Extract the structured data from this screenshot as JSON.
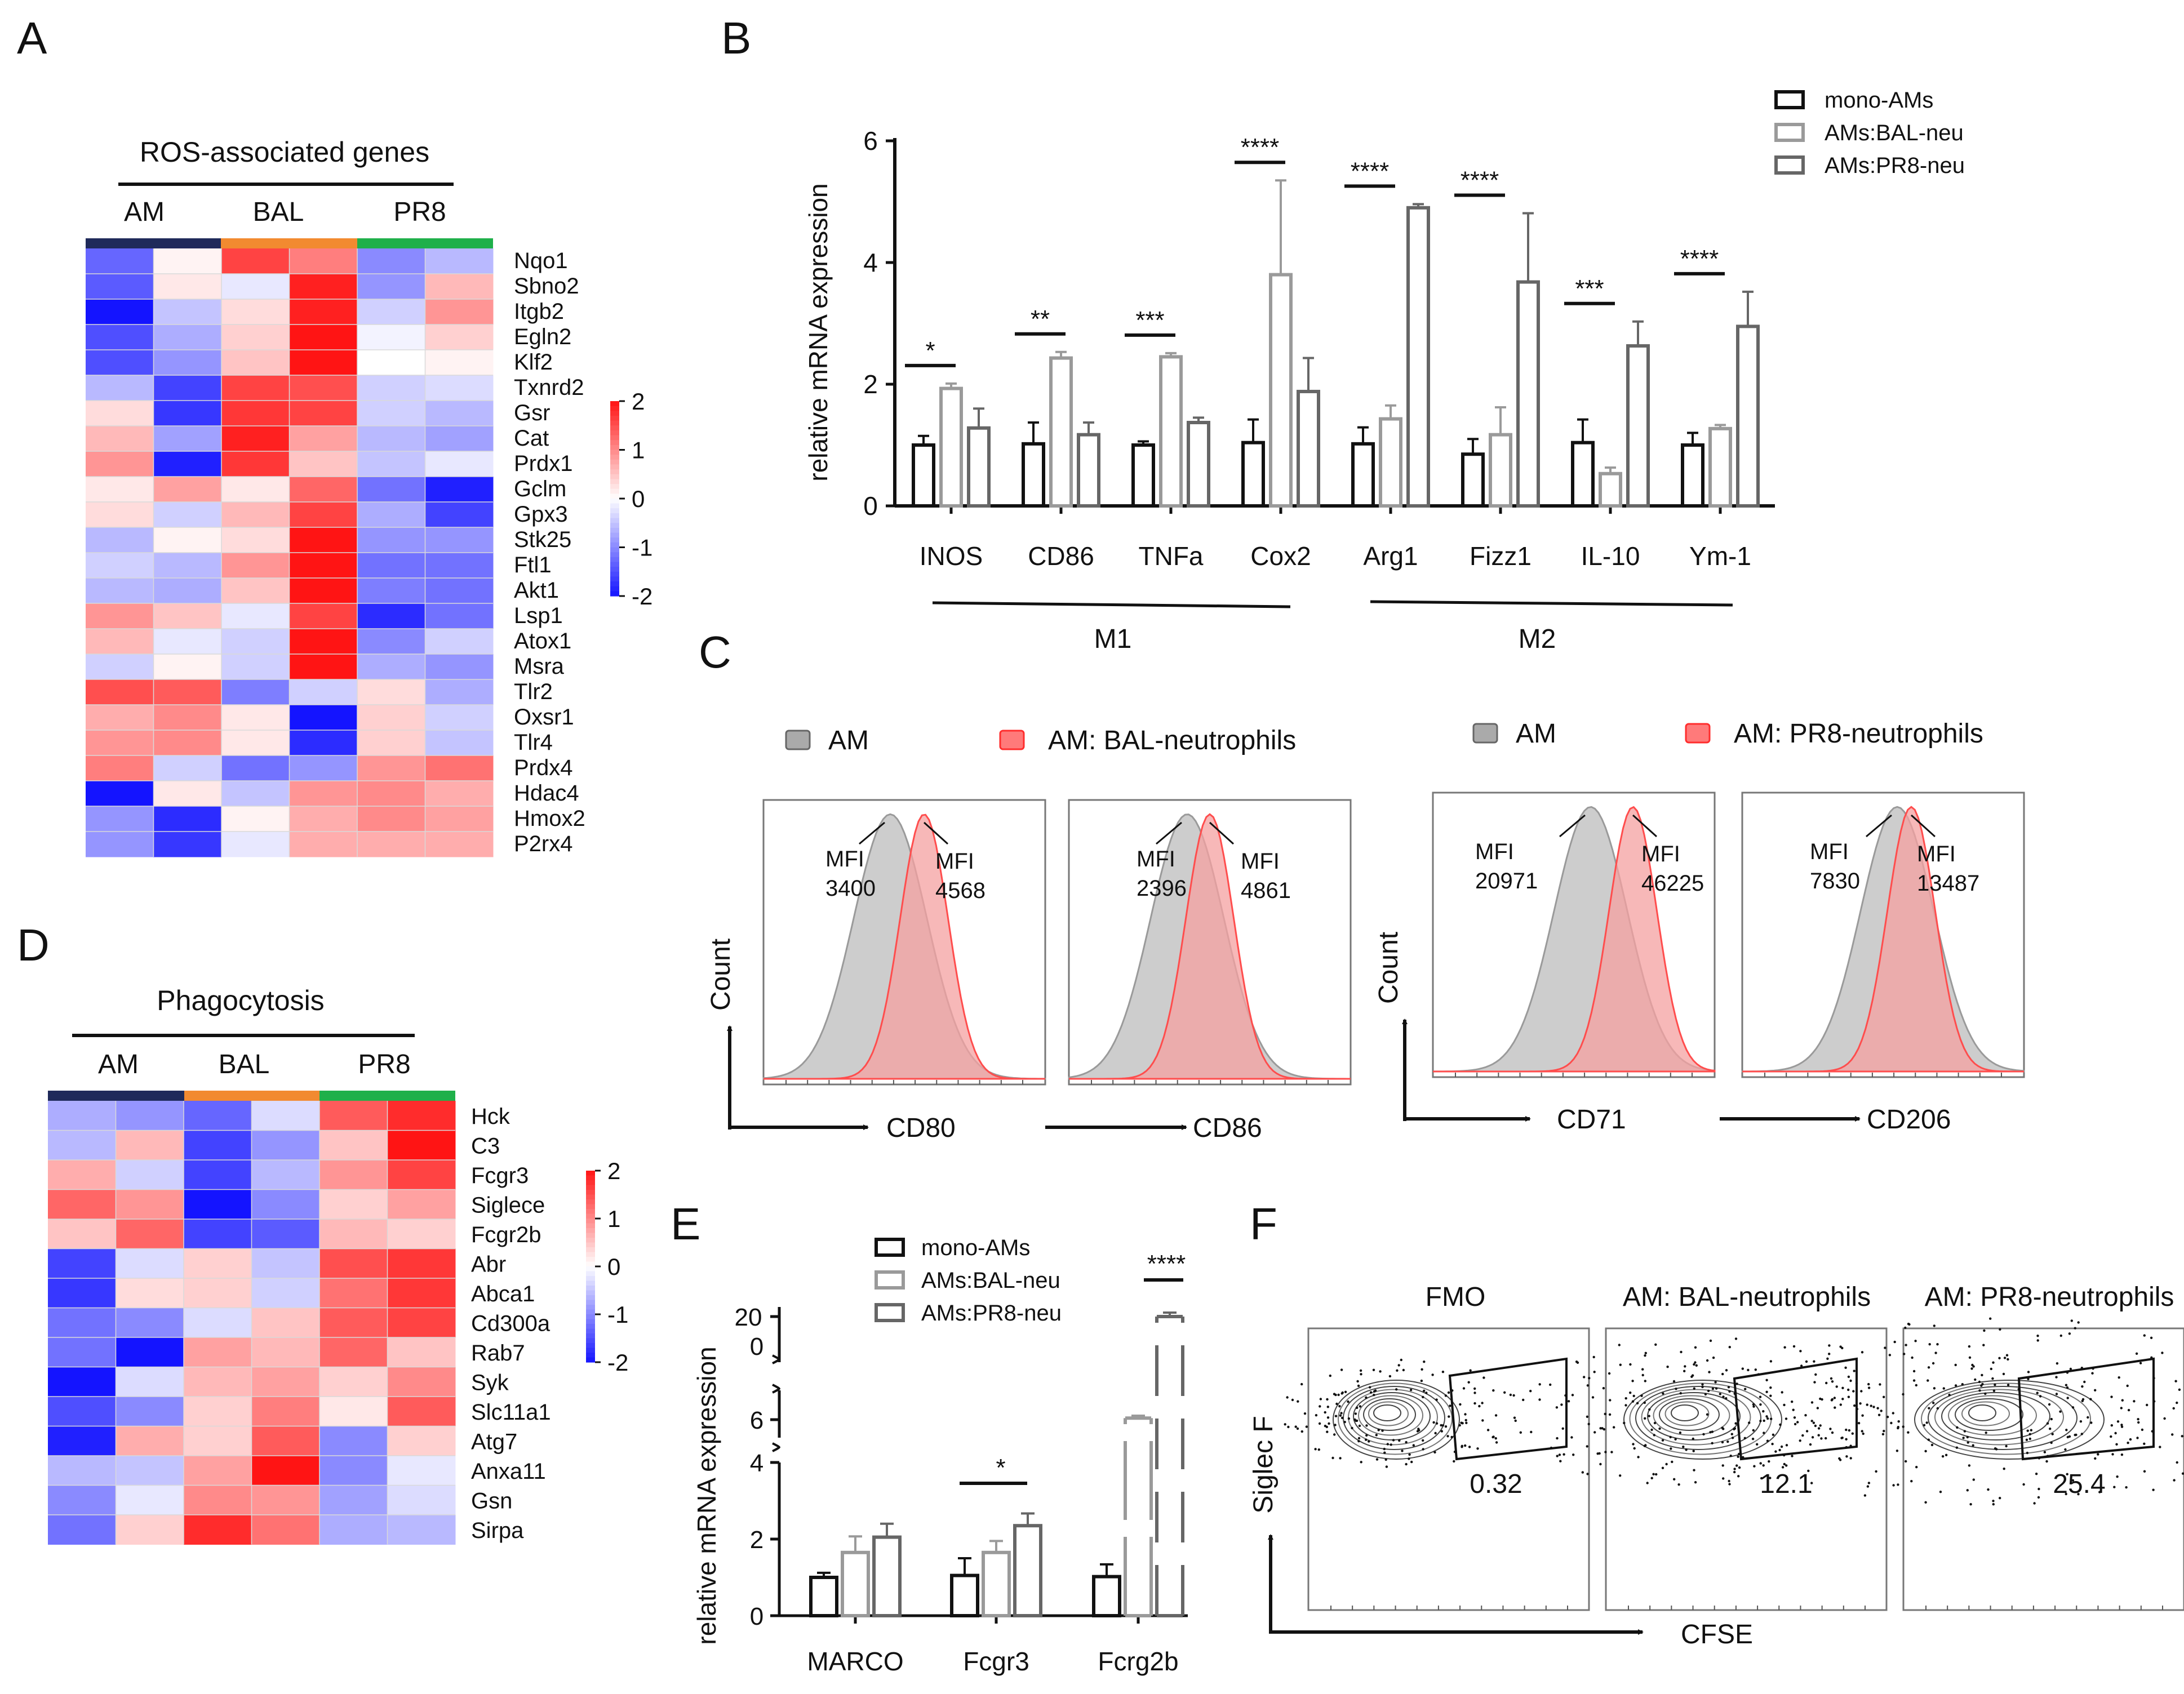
{
  "colors": {
    "black": "#111111",
    "lightgray": "#9a9a9a",
    "darkgray": "#666666",
    "red": "#ff2d2d",
    "blue": "#1a1aff",
    "navy": "#1f2a5a",
    "orange": "#f28a30",
    "green": "#1fb04a",
    "hist_gray": "#c8c8c8",
    "hist_red": "#f4a0a0"
  },
  "panels": {
    "A": {
      "letter": "A",
      "title": "ROS-associated genes",
      "groups": [
        "AM",
        "BAL",
        "PR8"
      ],
      "group_colors": [
        "#1f2a5a",
        "#f28a30",
        "#1fb04a"
      ],
      "genes": [
        "Nqo1",
        "Sbno2",
        "Itgb2",
        "Egln2",
        "Klf2",
        "Txnrd2",
        "Gsr",
        "Cat",
        "Prdx1",
        "Gclm",
        "Gpx3",
        "Stk25",
        "Ftl1",
        "Akt1",
        "Lsp1",
        "Atox1",
        "Msra",
        "Tlr2",
        "Oxsr1",
        "Tlr4",
        "Prdx4",
        "Hdac4",
        "Hmox2",
        "P2rx4"
      ],
      "matrix": [
        [
          -1.3,
          0.1,
          1.6,
          1.1,
          -1.0,
          -0.6
        ],
        [
          -1.4,
          0.2,
          -0.2,
          1.9,
          -0.9,
          0.6
        ],
        [
          -2.0,
          -0.5,
          0.3,
          1.9,
          -0.4,
          0.9
        ],
        [
          -1.5,
          -0.7,
          0.4,
          2.0,
          -0.1,
          0.4
        ],
        [
          -1.5,
          -0.9,
          0.5,
          2.0,
          0.0,
          0.1
        ],
        [
          -0.6,
          -1.6,
          1.6,
          1.5,
          -0.4,
          -0.3
        ],
        [
          0.3,
          -1.7,
          1.7,
          1.6,
          -0.4,
          -0.6
        ],
        [
          0.6,
          -0.8,
          1.9,
          0.8,
          -0.6,
          -0.8
        ],
        [
          0.9,
          -1.9,
          1.7,
          0.5,
          -0.5,
          -0.2
        ],
        [
          0.2,
          0.8,
          0.2,
          1.3,
          -1.2,
          -1.9
        ],
        [
          0.3,
          -0.4,
          0.6,
          1.6,
          -0.7,
          -1.6
        ],
        [
          -0.6,
          0.1,
          0.3,
          2.2,
          -0.9,
          -0.9
        ],
        [
          -0.4,
          -0.6,
          0.9,
          2.2,
          -1.2,
          -1.2
        ],
        [
          -0.6,
          -0.7,
          0.5,
          2.1,
          -1.1,
          -1.2
        ],
        [
          0.9,
          0.5,
          -0.2,
          1.6,
          -1.8,
          -1.2
        ],
        [
          0.6,
          -0.2,
          -0.4,
          2.1,
          -1.0,
          -0.4
        ],
        [
          -0.4,
          0.1,
          -0.4,
          2.0,
          -0.7,
          -0.9
        ],
        [
          1.5,
          1.4,
          -1.1,
          -0.4,
          0.3,
          -0.7
        ],
        [
          0.7,
          1.0,
          0.2,
          -2.1,
          0.4,
          -0.4
        ],
        [
          0.9,
          1.0,
          0.2,
          -1.8,
          0.4,
          -0.5
        ],
        [
          1.1,
          -0.4,
          -1.2,
          -0.9,
          0.9,
          1.2
        ],
        [
          -2.0,
          0.2,
          -0.5,
          0.9,
          1.0,
          0.7
        ],
        [
          -0.9,
          -1.8,
          0.1,
          0.7,
          1.0,
          0.8
        ],
        [
          -0.9,
          -1.7,
          -0.2,
          0.7,
          0.7,
          0.7
        ]
      ],
      "scale_ticks": [
        "2",
        "1",
        "0",
        "-1",
        "-2"
      ]
    },
    "B": {
      "letter": "B",
      "ylabel": "relative mRNA expression",
      "yticks": [
        "0",
        "2",
        "4",
        "6"
      ],
      "ymax": 6,
      "legend": [
        "mono-AMs",
        "AMs:BAL-neu",
        "AMs:PR8-neu"
      ],
      "categories": [
        "INOS",
        "CD86",
        "TNFa",
        "Cox2",
        "Arg1",
        "Fizz1",
        "IL-10",
        "Ym-1"
      ],
      "group_labels": [
        "M1",
        "M2"
      ],
      "sig": [
        "*",
        "**",
        "***",
        "****",
        "****",
        "****",
        "***",
        "****"
      ]
    },
    "C": {
      "letter": "C",
      "legend_left": [
        "AM",
        "AM: BAL-neutrophils"
      ],
      "legend_right": [
        "AM",
        "AM: PR8-neutrophils"
      ],
      "ylabel": "Count",
      "mfi_word": "MFI",
      "plots": [
        {
          "marker": "CD80",
          "gray_mfi": "3400",
          "red_mfi": "4568"
        },
        {
          "marker": "CD86",
          "gray_mfi": "2396",
          "red_mfi": "4861"
        },
        {
          "marker": "CD71",
          "gray_mfi": "20971",
          "red_mfi": "46225"
        },
        {
          "marker": "CD206",
          "gray_mfi": "7830",
          "red_mfi": "13487"
        }
      ]
    },
    "D": {
      "letter": "D",
      "title": "Phagocytosis",
      "groups": [
        "AM",
        "BAL",
        "PR8"
      ],
      "genes": [
        "Hck",
        "C3",
        "Fcgr3",
        "Siglece",
        "Fcgr2b",
        "Abr",
        "Abca1",
        "Cd300a",
        "Rab7",
        "Syk",
        "Slc11a1",
        "Atg7",
        "Anxa11",
        "Gsn",
        "Sirpa"
      ],
      "matrix": [
        [
          -0.7,
          -0.9,
          -1.3,
          -0.3,
          1.4,
          1.8
        ],
        [
          -0.6,
          0.6,
          -1.6,
          -0.9,
          0.5,
          2.0
        ],
        [
          0.7,
          -0.4,
          -1.6,
          -0.6,
          0.9,
          1.6
        ],
        [
          1.3,
          0.9,
          -2.0,
          -1.0,
          0.4,
          0.8
        ],
        [
          0.5,
          1.3,
          -1.6,
          -1.4,
          0.6,
          0.4
        ],
        [
          -1.6,
          -0.3,
          0.4,
          -0.5,
          1.5,
          1.7
        ],
        [
          -1.7,
          0.3,
          0.4,
          -0.4,
          1.2,
          1.7
        ],
        [
          -1.2,
          -1.0,
          -0.3,
          0.5,
          1.4,
          1.6
        ],
        [
          -1.2,
          -2.0,
          0.8,
          0.6,
          1.3,
          0.5
        ],
        [
          -2.0,
          -0.3,
          0.6,
          0.8,
          0.4,
          1.0
        ],
        [
          -1.5,
          -1.0,
          0.4,
          1.1,
          0.2,
          1.4
        ],
        [
          -1.9,
          0.7,
          0.4,
          1.4,
          -1.0,
          0.4
        ],
        [
          -0.6,
          -0.5,
          0.8,
          2.1,
          -1.0,
          -0.2
        ],
        [
          -1.0,
          -0.2,
          1.0,
          0.9,
          -0.8,
          -0.3
        ],
        [
          -1.2,
          0.4,
          1.8,
          1.2,
          -0.7,
          -0.6
        ]
      ],
      "scale_ticks": [
        "2",
        "1",
        "0",
        "-1",
        "-2"
      ]
    },
    "E": {
      "letter": "E",
      "ylabel": "relative mRNA expression",
      "legend": [
        "mono-AMs",
        "AMs:BAL-neu",
        "AMs:PR8-neu"
      ],
      "categories": [
        "MARCO",
        "Fcgr3",
        "Fcrg2b"
      ],
      "yticks_low": [
        "0",
        "2",
        "4"
      ],
      "ytick_mid": "6",
      "yticks_top": [
        "20",
        "0"
      ],
      "sig": [
        "*",
        "****"
      ]
    },
    "F": {
      "letter": "F",
      "titles": [
        "FMO",
        "AM: BAL-neutrophils",
        "AM: PR8-neutrophils"
      ],
      "gate_values": [
        "0.32",
        "12.1",
        "25.4"
      ],
      "xlabel": "CFSE",
      "ylabel": "Siglec F"
    }
  },
  "chart_data": [
    {
      "type": "heatmap",
      "panel": "A",
      "title": "ROS-associated genes",
      "columns": [
        "AM",
        "AM",
        "BAL",
        "BAL",
        "PR8",
        "PR8"
      ],
      "rows": [
        "Nqo1",
        "Sbno2",
        "Itgb2",
        "Egln2",
        "Klf2",
        "Txnrd2",
        "Gsr",
        "Cat",
        "Prdx1",
        "Gclm",
        "Gpx3",
        "Stk25",
        "Ftl1",
        "Akt1",
        "Lsp1",
        "Atox1",
        "Msra",
        "Tlr2",
        "Oxsr1",
        "Tlr4",
        "Prdx4",
        "Hdac4",
        "Hmox2",
        "P2rx4"
      ],
      "color_range": [
        -2,
        2
      ],
      "values_ref": "panels.A.matrix"
    },
    {
      "type": "bar",
      "panel": "B",
      "categories": [
        "INOS",
        "CD86",
        "TNFa",
        "Cox2",
        "Arg1",
        "Fizz1",
        "IL-10",
        "Ym-1"
      ],
      "series": [
        {
          "name": "mono-AMs",
          "values": [
            1.0,
            1.02,
            1.0,
            1.04,
            1.02,
            0.85,
            1.04,
            1.0
          ],
          "errors": [
            0.15,
            0.35,
            0.06,
            0.38,
            0.27,
            0.25,
            0.38,
            0.2
          ]
        },
        {
          "name": "AMs:BAL-neu",
          "values": [
            1.93,
            2.43,
            2.45,
            3.8,
            1.43,
            1.17,
            0.53,
            1.27
          ],
          "errors": [
            0.08,
            0.1,
            0.06,
            1.55,
            0.22,
            0.45,
            0.1,
            0.06
          ]
        },
        {
          "name": "AMs:PR8-neu",
          "values": [
            1.28,
            1.17,
            1.37,
            1.88,
            4.9,
            3.68,
            2.63,
            2.95
          ],
          "errors": [
            0.32,
            0.2,
            0.08,
            0.55,
            0.06,
            1.13,
            0.4,
            0.57
          ]
        }
      ],
      "ylabel": "relative mRNA expression",
      "ylim": [
        0,
        6
      ],
      "groups": [
        {
          "label": "M1",
          "categories": [
            "INOS",
            "CD86",
            "TNFa",
            "Cox2"
          ]
        },
        {
          "label": "M2",
          "categories": [
            "Arg1",
            "Fizz1",
            "IL-10",
            "Ym-1"
          ]
        }
      ]
    },
    {
      "type": "histogram",
      "panel": "C",
      "plots": [
        {
          "x": "CD80",
          "series": [
            {
              "name": "AM",
              "mfi": 3400
            },
            {
              "name": "AM: BAL-neutrophils",
              "mfi": 4568
            }
          ]
        },
        {
          "x": "CD86",
          "series": [
            {
              "name": "AM",
              "mfi": 2396
            },
            {
              "name": "AM: BAL-neutrophils",
              "mfi": 4861
            }
          ]
        },
        {
          "x": "CD71",
          "series": [
            {
              "name": "AM",
              "mfi": 20971
            },
            {
              "name": "AM: PR8-neutrophils",
              "mfi": 46225
            }
          ]
        },
        {
          "x": "CD206",
          "series": [
            {
              "name": "AM",
              "mfi": 7830
            },
            {
              "name": "AM: PR8-neutrophils",
              "mfi": 13487
            }
          ]
        }
      ],
      "ylabel": "Count"
    },
    {
      "type": "heatmap",
      "panel": "D",
      "title": "Phagocytosis",
      "columns": [
        "AM",
        "AM",
        "BAL",
        "BAL",
        "PR8",
        "PR8"
      ],
      "rows": [
        "Hck",
        "C3",
        "Fcgr3",
        "Siglece",
        "Fcgr2b",
        "Abr",
        "Abca1",
        "Cd300a",
        "Rab7",
        "Syk",
        "Slc11a1",
        "Atg7",
        "Anxa11",
        "Gsn",
        "Sirpa"
      ],
      "color_range": [
        -2,
        2
      ],
      "values_ref": "panels.D.matrix"
    },
    {
      "type": "bar",
      "panel": "E",
      "categories": [
        "MARCO",
        "Fcgr3",
        "Fcrg2b"
      ],
      "series": [
        {
          "name": "mono-AMs",
          "values": [
            1.0,
            1.05,
            1.02
          ],
          "errors": [
            0.12,
            0.45,
            0.32
          ]
        },
        {
          "name": "AMs:BAL-neu",
          "values": [
            1.65,
            1.65,
            6.1
          ],
          "errors": [
            0.42,
            0.3,
            0.15
          ]
        },
        {
          "name": "AMs:PR8-neu",
          "values": [
            2.05,
            2.35,
            20.0
          ],
          "errors": [
            0.35,
            0.32,
            0.5
          ]
        }
      ],
      "ylabel": "relative mRNA expression",
      "ylim": [
        0,
        20
      ],
      "broken_axis": true
    },
    {
      "type": "flow_contour",
      "panel": "F",
      "xlabel": "CFSE",
      "ylabel": "Siglec F",
      "samples": [
        {
          "name": "FMO",
          "gate_percent": 0.32
        },
        {
          "name": "AM: BAL-neutrophils",
          "gate_percent": 12.1
        },
        {
          "name": "AM: PR8-neutrophils",
          "gate_percent": 25.4
        }
      ]
    }
  ]
}
